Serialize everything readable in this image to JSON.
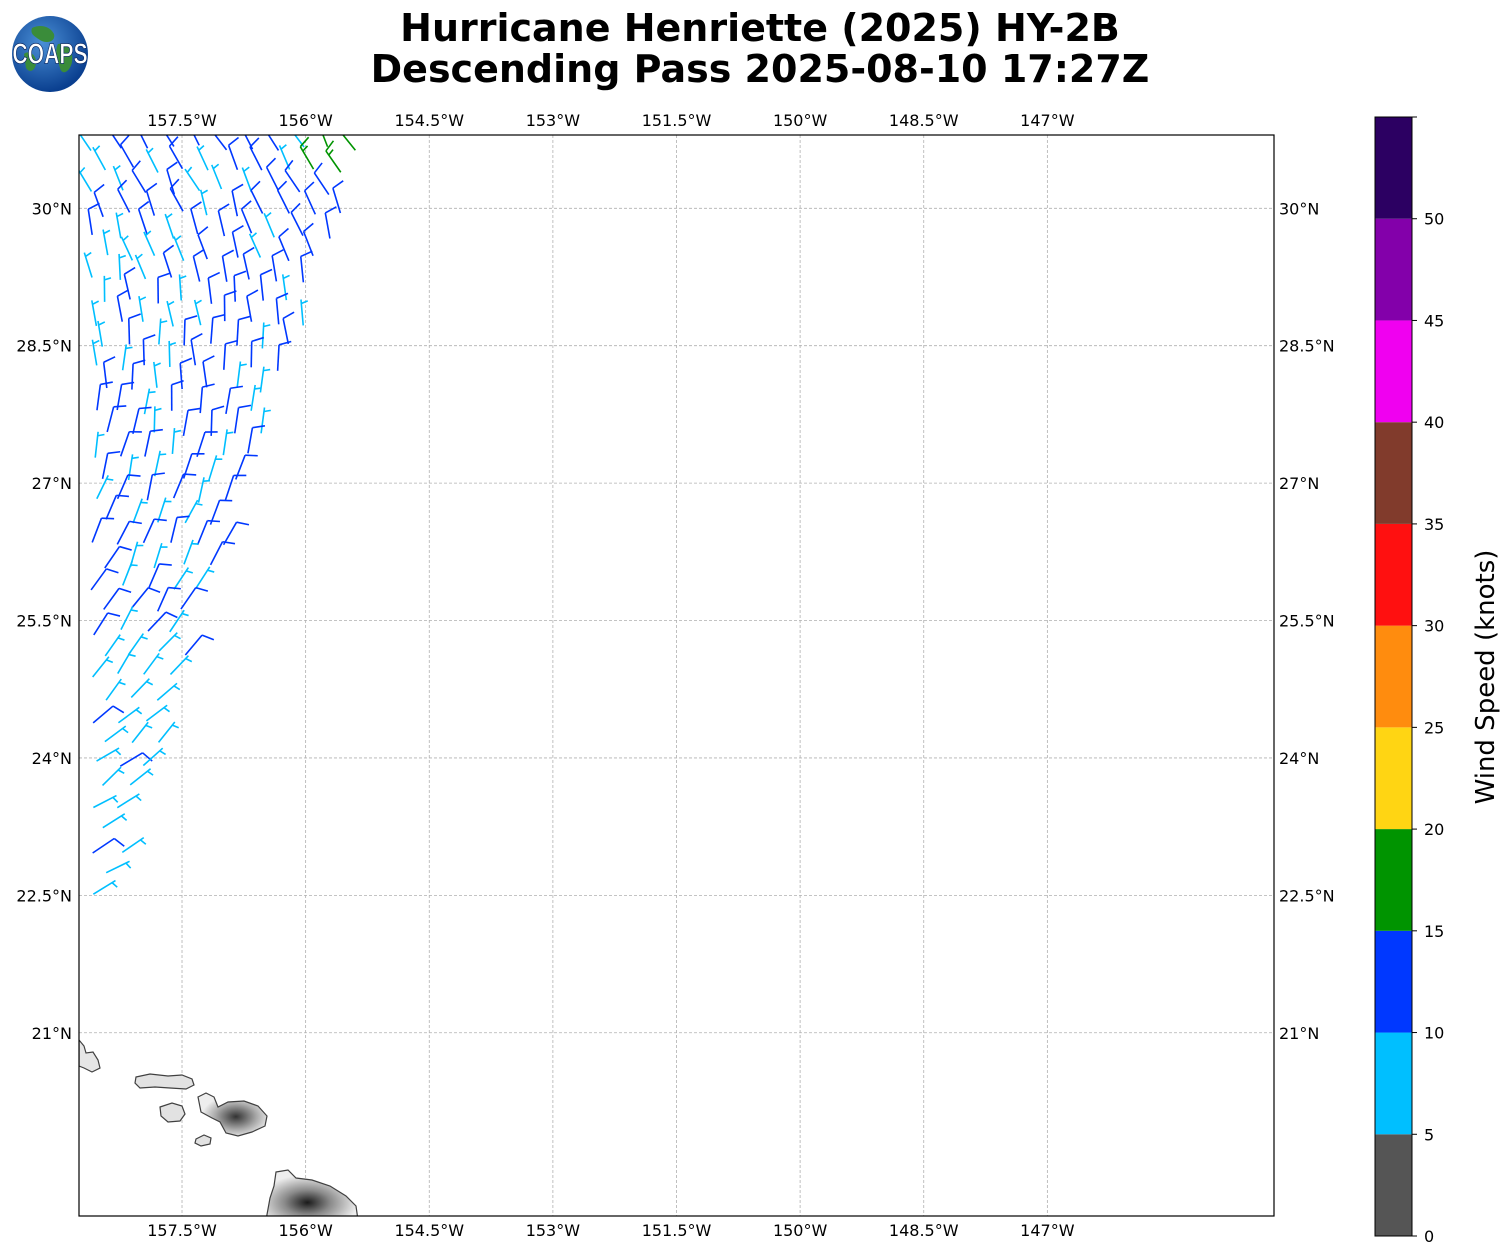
{
  "title": {
    "line1": "Hurricane Henriette (2025) HY-2B",
    "line2": "Descending Pass 2025-08-10 17:27Z"
  },
  "logo": {
    "text": "COAPS",
    "icon": "globe-logo-icon"
  },
  "map": {
    "lon_range": [
      -158.75,
      -144.25
    ],
    "lat_range": [
      19.0,
      30.8
    ],
    "lon_ticks": [
      "157.5°W",
      "156°W",
      "154.5°W",
      "153°W",
      "151.5°W",
      "150°W",
      "148.5°W",
      "147°W"
    ],
    "lat_ticks": [
      "30°N",
      "28.5°N",
      "27°N",
      "25.5°N",
      "24°N",
      "22.5°N",
      "21°N"
    ],
    "gridlines": true,
    "land_color": "#d9d9d9",
    "coast_color": "#404040"
  },
  "colorbar": {
    "label": "Wind Speed (knots)",
    "ticks": [
      "0",
      "5",
      "10",
      "15",
      "20",
      "25",
      "30",
      "35",
      "40",
      "45",
      "50"
    ],
    "bins": [
      {
        "from": 0,
        "to": 5,
        "color": "#555555"
      },
      {
        "from": 5,
        "to": 10,
        "color": "#00bfff"
      },
      {
        "from": 10,
        "to": 15,
        "color": "#0038ff"
      },
      {
        "from": 15,
        "to": 20,
        "color": "#009400"
      },
      {
        "from": 20,
        "to": 25,
        "color": "#ffd513"
      },
      {
        "from": 25,
        "to": 30,
        "color": "#ff8c0e"
      },
      {
        "from": 30,
        "to": 35,
        "color": "#ff1010"
      },
      {
        "from": 35,
        "to": 40,
        "color": "#813b2c"
      },
      {
        "from": 40,
        "to": 45,
        "color": "#f000f0"
      },
      {
        "from": 45,
        "to": 50,
        "color": "#8300aa"
      },
      {
        "from": 50,
        "to": 55,
        "color": "#2c0062"
      }
    ]
  }
}
